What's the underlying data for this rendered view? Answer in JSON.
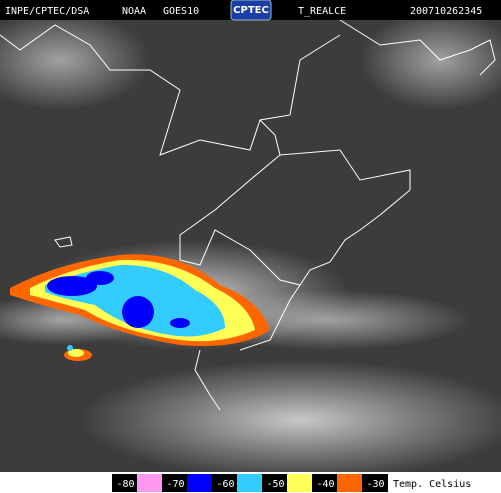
{
  "header": {
    "source": "INPE/CPTEC/DSA",
    "agency": "NOAA",
    "satellite": "GOES10",
    "logo": "CPTEC",
    "product": "T_REALCE",
    "timestamp": "200710262345"
  },
  "legend": {
    "ticks": [
      -80,
      -70,
      -60,
      -50,
      -40,
      -30
    ],
    "colors": [
      "#ff99ee",
      "#0000ff",
      "#33ccff",
      "#ffff55",
      "#ff6600"
    ],
    "unit": "Temp. Celsius"
  }
}
